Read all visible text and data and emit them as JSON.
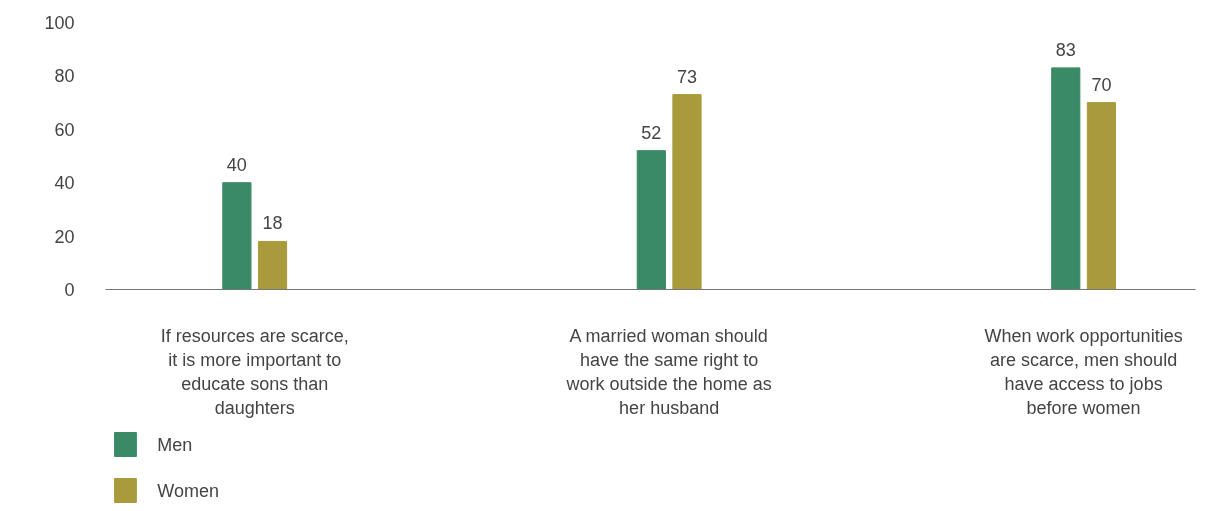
{
  "chart_data": {
    "type": "bar",
    "categories": [
      "If resources are scarce, it is more important to educate sons than daughters",
      "A married woman should have the same right to work outside the home as her husband",
      "When work opportunities are scarce, men should have access to jobs before women"
    ],
    "series": [
      {
        "name": "Men",
        "color": "#3a8a66",
        "values": [
          40,
          52,
          83
        ]
      },
      {
        "name": "Women",
        "color": "#a99b3b",
        "values": [
          18,
          73,
          70
        ]
      }
    ],
    "ylim": [
      0,
      100
    ],
    "yticks": [
      0,
      20,
      40,
      60,
      80,
      100
    ],
    "grid": false,
    "legend": "bottom left",
    "data_labels": true
  }
}
